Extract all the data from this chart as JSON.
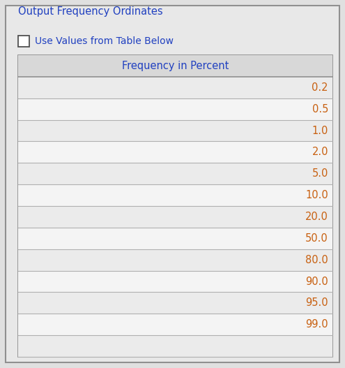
{
  "title": "Output Frequency Ordinates",
  "checkbox_label": "Use Values from Table Below",
  "table_header": "Frequency in Percent",
  "table_values": [
    "0.2",
    "0.5",
    "1.0",
    "2.0",
    "5.0",
    "10.0",
    "20.0",
    "50.0",
    "80.0",
    "90.0",
    "95.0",
    "99.0"
  ],
  "bg_color": "#e0e0e0",
  "panel_bg": "#e8e8e8",
  "table_bg": "#ffffff",
  "header_bg": "#d8d8d8",
  "text_color": "#2040c0",
  "value_color": "#c86010",
  "header_text_color": "#2040c0",
  "title_fontsize": 10.5,
  "label_fontsize": 10,
  "table_fontsize": 10.5,
  "panel_border_color": "#909090",
  "table_border_color": "#909090",
  "row_line_color": "#b0b0b0",
  "figsize": [
    4.95,
    5.27
  ],
  "dpi": 100
}
